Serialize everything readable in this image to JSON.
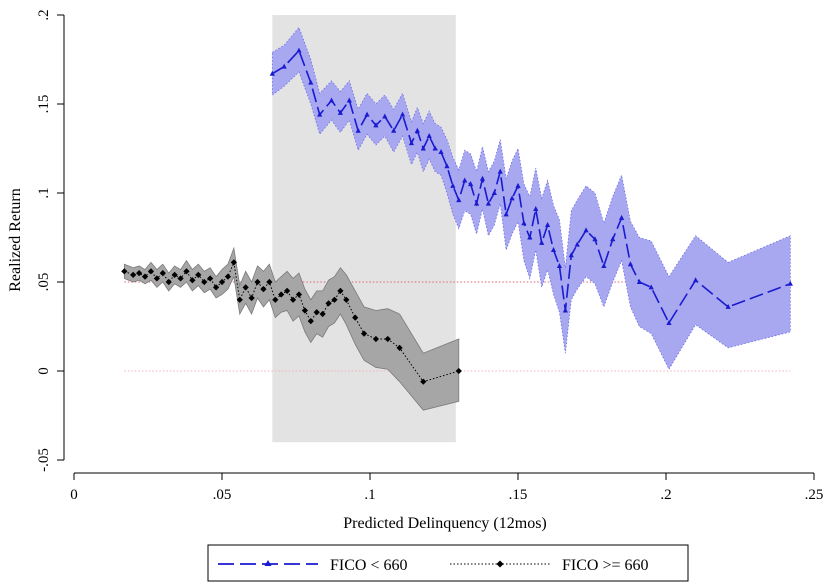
{
  "chart_data": {
    "type": "line",
    "title": "",
    "xlabel": "Predicted Delinquency (12mos)",
    "ylabel": "Realized Return",
    "xlim": [
      0,
      0.25
    ],
    "ylim": [
      -0.05,
      0.2
    ],
    "x_ticks": [
      {
        "value": 0,
        "label": "0"
      },
      {
        "value": 0.05,
        "label": ".05"
      },
      {
        "value": 0.1,
        "label": ".1"
      },
      {
        "value": 0.15,
        "label": ".15"
      },
      {
        "value": 0.2,
        "label": ".2"
      },
      {
        "value": 0.25,
        "label": ".25"
      }
    ],
    "y_ticks": [
      {
        "value": -0.05,
        "label": "-.05"
      },
      {
        "value": 0,
        "label": "0"
      },
      {
        "value": 0.05,
        "label": ".05"
      },
      {
        "value": 0.1,
        "label": ".1"
      },
      {
        "value": 0.15,
        "label": ".15"
      },
      {
        "value": 0.2,
        "label": ".2"
      }
    ],
    "grid": false,
    "legend_position": "bottom",
    "shaded_region": {
      "x": [
        0.067,
        0.129
      ],
      "y": [
        -0.04,
        0.2
      ],
      "color": "#e3e3e3"
    },
    "reference_lines": [
      {
        "series": "FICO < 660",
        "y": 0.05,
        "x": [
          0.017,
          0.242
        ],
        "color": "#e06070"
      },
      {
        "series": "FICO >= 660",
        "y": 0,
        "x": [
          0.017,
          0.242
        ],
        "color": "#f0b0b8"
      }
    ],
    "series": [
      {
        "name": "FICO < 660",
        "color": "#1a1ad0",
        "band_color": "#a8a8f0",
        "line_style": "long-dash",
        "marker": "triangle",
        "x": [
          0.067,
          0.071,
          0.076,
          0.08,
          0.083,
          0.087,
          0.09,
          0.093,
          0.096,
          0.099,
          0.102,
          0.105,
          0.108,
          0.111,
          0.114,
          0.116,
          0.118,
          0.12,
          0.122,
          0.124,
          0.126,
          0.128,
          0.13,
          0.132,
          0.134,
          0.136,
          0.138,
          0.14,
          0.142,
          0.144,
          0.146,
          0.148,
          0.15,
          0.152,
          0.154,
          0.156,
          0.158,
          0.16,
          0.162,
          0.164,
          0.166,
          0.168,
          0.17,
          0.173,
          0.176,
          0.179,
          0.182,
          0.185,
          0.188,
          0.191,
          0.195,
          0.201,
          0.21,
          0.221,
          0.242
        ],
        "y": [
          0.167,
          0.171,
          0.18,
          0.162,
          0.144,
          0.152,
          0.145,
          0.152,
          0.135,
          0.144,
          0.138,
          0.143,
          0.135,
          0.144,
          0.128,
          0.135,
          0.125,
          0.132,
          0.125,
          0.123,
          0.115,
          0.104,
          0.096,
          0.107,
          0.105,
          0.094,
          0.108,
          0.094,
          0.1,
          0.112,
          0.088,
          0.097,
          0.104,
          0.083,
          0.075,
          0.091,
          0.072,
          0.082,
          0.068,
          0.059,
          0.034,
          0.065,
          0.071,
          0.079,
          0.074,
          0.059,
          0.074,
          0.086,
          0.06,
          0.05,
          0.047,
          0.027,
          0.051,
          0.036,
          0.049
        ],
        "ci_low": [
          0.155,
          0.16,
          0.168,
          0.15,
          0.133,
          0.141,
          0.134,
          0.141,
          0.124,
          0.133,
          0.127,
          0.132,
          0.123,
          0.132,
          0.116,
          0.123,
          0.112,
          0.119,
          0.112,
          0.11,
          0.1,
          0.088,
          0.08,
          0.09,
          0.088,
          0.077,
          0.091,
          0.076,
          0.082,
          0.094,
          0.068,
          0.077,
          0.084,
          0.062,
          0.052,
          0.068,
          0.047,
          0.057,
          0.043,
          0.033,
          0.01,
          0.04,
          0.046,
          0.053,
          0.049,
          0.036,
          0.05,
          0.062,
          0.036,
          0.025,
          0.021,
          0.001,
          0.026,
          0.013,
          0.022
        ],
        "ci_high": [
          0.179,
          0.183,
          0.193,
          0.175,
          0.156,
          0.163,
          0.157,
          0.163,
          0.147,
          0.156,
          0.15,
          0.155,
          0.147,
          0.156,
          0.14,
          0.148,
          0.139,
          0.146,
          0.139,
          0.137,
          0.13,
          0.12,
          0.113,
          0.124,
          0.122,
          0.112,
          0.126,
          0.112,
          0.118,
          0.13,
          0.108,
          0.118,
          0.125,
          0.105,
          0.098,
          0.114,
          0.097,
          0.107,
          0.093,
          0.085,
          0.058,
          0.09,
          0.096,
          0.104,
          0.1,
          0.083,
          0.098,
          0.11,
          0.084,
          0.075,
          0.073,
          0.053,
          0.076,
          0.061,
          0.076
        ]
      },
      {
        "name": "FICO >= 660",
        "color": "#000000",
        "band_color": "#a6a6a6",
        "line_style": "dotted",
        "marker": "diamond",
        "x": [
          0.017,
          0.02,
          0.022,
          0.024,
          0.026,
          0.028,
          0.03,
          0.032,
          0.034,
          0.036,
          0.038,
          0.04,
          0.042,
          0.044,
          0.046,
          0.048,
          0.05,
          0.052,
          0.054,
          0.056,
          0.058,
          0.06,
          0.062,
          0.064,
          0.066,
          0.068,
          0.07,
          0.072,
          0.074,
          0.076,
          0.078,
          0.08,
          0.082,
          0.084,
          0.086,
          0.088,
          0.09,
          0.092,
          0.095,
          0.098,
          0.102,
          0.106,
          0.11,
          0.118,
          0.13
        ],
        "y": [
          0.056,
          0.054,
          0.055,
          0.053,
          0.056,
          0.052,
          0.055,
          0.05,
          0.054,
          0.052,
          0.056,
          0.051,
          0.054,
          0.05,
          0.052,
          0.047,
          0.05,
          0.053,
          0.061,
          0.04,
          0.047,
          0.041,
          0.05,
          0.046,
          0.05,
          0.04,
          0.043,
          0.045,
          0.04,
          0.043,
          0.034,
          0.028,
          0.033,
          0.032,
          0.038,
          0.04,
          0.045,
          0.04,
          0.03,
          0.021,
          0.018,
          0.018,
          0.013,
          -0.006,
          0.0
        ],
        "ci_low": [
          0.052,
          0.05,
          0.051,
          0.049,
          0.051,
          0.047,
          0.05,
          0.045,
          0.049,
          0.047,
          0.05,
          0.045,
          0.048,
          0.044,
          0.046,
          0.041,
          0.043,
          0.046,
          0.053,
          0.032,
          0.038,
          0.032,
          0.041,
          0.036,
          0.04,
          0.03,
          0.033,
          0.034,
          0.028,
          0.031,
          0.022,
          0.016,
          0.021,
          0.019,
          0.025,
          0.027,
          0.032,
          0.026,
          0.015,
          0.006,
          0.002,
          0.001,
          -0.006,
          -0.022,
          -0.017
        ],
        "ci_high": [
          0.06,
          0.058,
          0.059,
          0.057,
          0.061,
          0.057,
          0.06,
          0.055,
          0.059,
          0.057,
          0.062,
          0.057,
          0.06,
          0.056,
          0.058,
          0.053,
          0.057,
          0.06,
          0.069,
          0.048,
          0.056,
          0.05,
          0.059,
          0.056,
          0.06,
          0.05,
          0.053,
          0.056,
          0.052,
          0.055,
          0.046,
          0.04,
          0.045,
          0.045,
          0.051,
          0.053,
          0.058,
          0.054,
          0.045,
          0.036,
          0.034,
          0.035,
          0.032,
          0.01,
          0.018
        ]
      }
    ]
  }
}
